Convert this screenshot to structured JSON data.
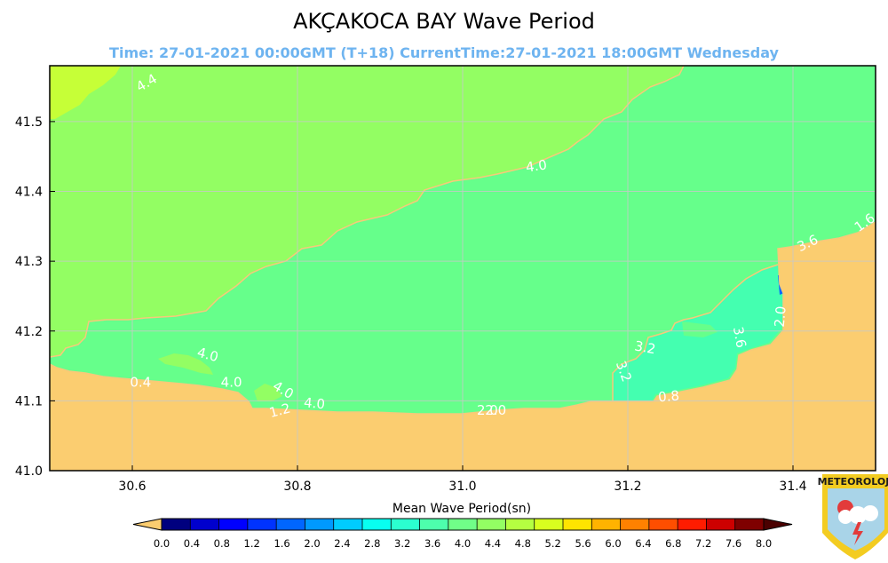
{
  "colors": {
    "land": "#fbcd70",
    "sea_4_4": "#93fe63",
    "sea_4_0": "#66ff8b",
    "sea_3_6": "#44ffb0",
    "sea_2_0": "#0b68ff",
    "sea_5_2": "#c6ff37",
    "subtitle": "#6eb4f0",
    "contour_line": "#f6c97a",
    "grid": "#c8c8c8"
  },
  "chart_data": {
    "type": "heatmap",
    "title": "AKÇAKOCA BAY Wave Period",
    "subtitle": "Time: 27-01-2021 00:00GMT (T+18)  CurrentTime:27-01-2021 18:00GMT Wednesday",
    "xlabel": "",
    "ylabel": "",
    "xlim": [
      30.5,
      31.5
    ],
    "ylim": [
      41.0,
      41.58
    ],
    "grid": true,
    "x_ticks": [
      "30.6",
      "30.8",
      "31.0",
      "31.2",
      "31.4"
    ],
    "x_tick_values": [
      30.6,
      30.8,
      31.0,
      31.2,
      31.4
    ],
    "y_ticks": [
      "41.0",
      "41.1",
      "41.2",
      "41.3",
      "41.4",
      "41.5"
    ],
    "y_tick_values": [
      41.0,
      41.1,
      41.2,
      41.3,
      41.4,
      41.5
    ],
    "contour_labels": [
      {
        "text": "4.4",
        "x": 30.62,
        "y": 41.55,
        "rot": -30
      },
      {
        "text": "4.0",
        "x": 31.09,
        "y": 41.43,
        "rot": -8
      },
      {
        "text": "4.0",
        "x": 30.69,
        "y": 41.16,
        "rot": 15
      },
      {
        "text": "0.4",
        "x": 30.61,
        "y": 41.12,
        "rot": 0
      },
      {
        "text": "4.0",
        "x": 30.72,
        "y": 41.12,
        "rot": 0
      },
      {
        "text": "4.0",
        "x": 30.78,
        "y": 41.11,
        "rot": 30
      },
      {
        "text": "1.2",
        "x": 30.78,
        "y": 41.08,
        "rot": -15
      },
      {
        "text": "4.0",
        "x": 30.82,
        "y": 41.09,
        "rot": 5
      },
      {
        "text": "2.0",
        "x": 31.04,
        "y": 41.08,
        "rot": 0
      },
      {
        "text": "2.0",
        "x": 31.03,
        "y": 41.08,
        "rot": 0
      },
      {
        "text": "3.2",
        "x": 31.22,
        "y": 41.17,
        "rot": 10
      },
      {
        "text": "3.2",
        "x": 31.19,
        "y": 41.14,
        "rot": 70
      },
      {
        "text": "0.8",
        "x": 31.25,
        "y": 41.1,
        "rot": -5
      },
      {
        "text": "3.6",
        "x": 31.33,
        "y": 41.19,
        "rot": 80
      },
      {
        "text": "2.0",
        "x": 31.39,
        "y": 41.22,
        "rot": -85
      },
      {
        "text": "3.6",
        "x": 31.42,
        "y": 41.32,
        "rot": -25
      },
      {
        "text": "1.6",
        "x": 31.49,
        "y": 41.35,
        "rot": -35
      }
    ],
    "colorbar": {
      "label": "Mean Wave Period(sn)",
      "ticks": [
        "0.0",
        "0.4",
        "0.8",
        "1.2",
        "1.6",
        "2.0",
        "2.4",
        "2.8",
        "3.2",
        "3.6",
        "4.0",
        "4.4",
        "4.8",
        "5.2",
        "5.6",
        "6.0",
        "6.4",
        "6.8",
        "7.2",
        "7.6",
        "8.0"
      ],
      "colors": [
        "#00007f",
        "#0000cd",
        "#0000ff",
        "#0033ff",
        "#0066ff",
        "#0099ff",
        "#00ccff",
        "#08fff0",
        "#2bffcf",
        "#4dffac",
        "#70ff88",
        "#93ff63",
        "#b5ff41",
        "#d8ff1f",
        "#ffe400",
        "#ffb300",
        "#ff8100",
        "#ff4e00",
        "#ff1c00",
        "#cd0000",
        "#7f0000"
      ],
      "under_color": "#fbcd70",
      "over_color": "#4b0000"
    }
  },
  "logo": {
    "text": "METEOROLOJİ",
    "ring": "#f3cc21",
    "sky": "#a9d4e8"
  }
}
